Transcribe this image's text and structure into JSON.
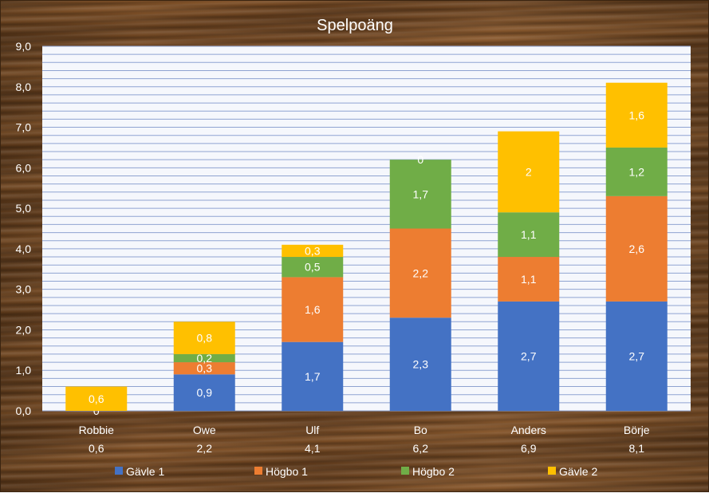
{
  "chart_data": {
    "type": "bar",
    "stacked": true,
    "title": "Spelpoäng",
    "categories": [
      "Robbie",
      "Owe",
      "Ulf",
      "Bo",
      "Anders",
      "Börje"
    ],
    "category_totals": [
      "0,6",
      "2,2",
      "4,1",
      "6,2",
      "6,9",
      "8,1"
    ],
    "series": [
      {
        "name": "Gävle 1",
        "color": "#4472C4",
        "values": [
          0,
          0.9,
          1.7,
          2.3,
          2.7,
          2.7
        ],
        "labels": [
          "0",
          "0,9",
          "1,7",
          "2,3",
          "2,7",
          "2,7"
        ]
      },
      {
        "name": "Högbo 1",
        "color": "#ED7D31",
        "values": [
          0,
          0.3,
          1.6,
          2.2,
          1.1,
          2.6
        ],
        "labels": [
          "",
          "0,3",
          "1,6",
          "2,2",
          "1,1",
          "2,6"
        ]
      },
      {
        "name": "Högbo 2",
        "color": "#70AD47",
        "values": [
          0,
          0.2,
          0.5,
          1.7,
          1.1,
          1.2
        ],
        "labels": [
          "",
          "0,2",
          "0,5",
          "1,7",
          "1,1",
          "1,2"
        ]
      },
      {
        "name": "Gävle 2",
        "color": "#FFC000",
        "values": [
          0.6,
          0.8,
          0.3,
          0,
          2,
          1.6
        ],
        "labels": [
          "0,6",
          "0,8",
          "0,3",
          "0",
          "2",
          "1,6"
        ]
      }
    ],
    "y_ticks": [
      "0,0",
      "1,0",
      "2,0",
      "3,0",
      "4,0",
      "5,0",
      "6,0",
      "7,0",
      "8,0",
      "9,0"
    ],
    "ylim": [
      0,
      9
    ],
    "minor_gridline_step": 0.2,
    "grid": true,
    "legend_position": "bottom",
    "plot_background": "#F5F7FC",
    "gridline_color": "#8FA3D1"
  }
}
